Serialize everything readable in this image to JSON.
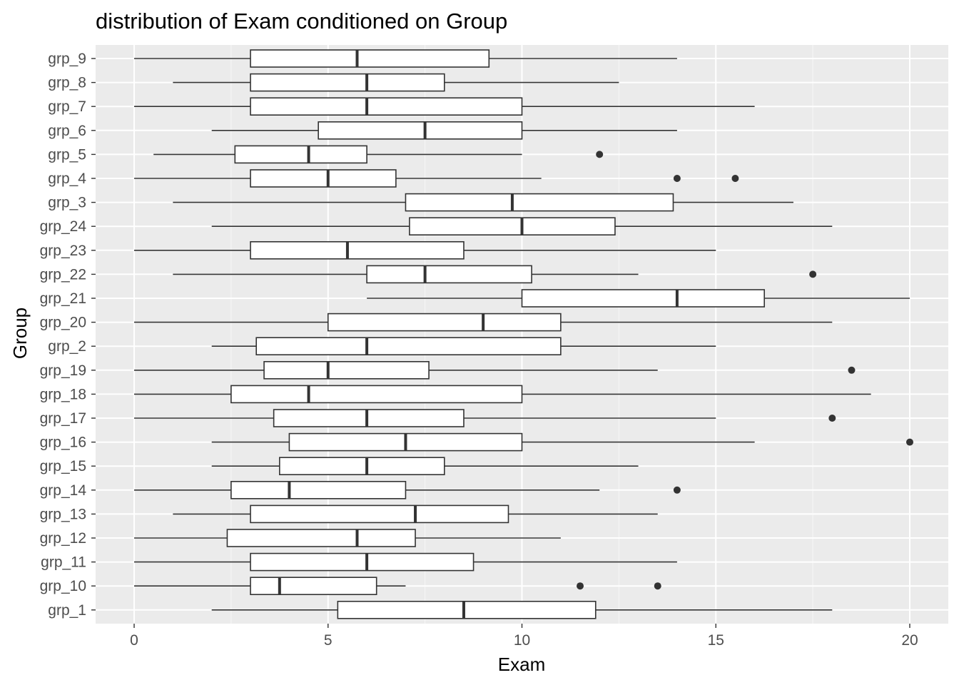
{
  "chart_data": {
    "type": "boxplot",
    "orientation": "horizontal",
    "title": "distribution of Exam conditioned on Group",
    "xlabel": "Exam",
    "ylabel": "Group",
    "xlim": [
      -1,
      21
    ],
    "x_ticks": [
      0,
      5,
      10,
      15,
      20
    ],
    "x_tick_labels": [
      "0",
      "5",
      "10",
      "15",
      "20"
    ],
    "grid": true,
    "categories": [
      "grp_1",
      "grp_10",
      "grp_11",
      "grp_12",
      "grp_13",
      "grp_14",
      "grp_15",
      "grp_16",
      "grp_17",
      "grp_18",
      "grp_19",
      "grp_2",
      "grp_20",
      "grp_21",
      "grp_22",
      "grp_23",
      "grp_24",
      "grp_3",
      "grp_4",
      "grp_5",
      "grp_6",
      "grp_7",
      "grp_8",
      "grp_9"
    ],
    "boxes": [
      {
        "group": "grp_1",
        "min": 2,
        "q1": 5.25,
        "median": 8.5,
        "q3": 11.9,
        "max": 18,
        "outliers": []
      },
      {
        "group": "grp_10",
        "min": 0,
        "q1": 3,
        "median": 3.75,
        "q3": 6.25,
        "max": 7,
        "outliers": [
          11.5,
          13.5
        ]
      },
      {
        "group": "grp_11",
        "min": 0,
        "q1": 3,
        "median": 6,
        "q3": 8.75,
        "max": 14,
        "outliers": []
      },
      {
        "group": "grp_12",
        "min": 0,
        "q1": 2.4,
        "median": 5.75,
        "q3": 7.25,
        "max": 11,
        "outliers": []
      },
      {
        "group": "grp_13",
        "min": 1,
        "q1": 3,
        "median": 7.25,
        "q3": 9.65,
        "max": 13.5,
        "outliers": []
      },
      {
        "group": "grp_14",
        "min": 0,
        "q1": 2.5,
        "median": 4,
        "q3": 7,
        "max": 12,
        "outliers": [
          14
        ]
      },
      {
        "group": "grp_15",
        "min": 2,
        "q1": 3.75,
        "median": 6,
        "q3": 8,
        "max": 13,
        "outliers": []
      },
      {
        "group": "grp_16",
        "min": 2,
        "q1": 4,
        "median": 7,
        "q3": 10,
        "max": 16,
        "outliers": [
          20
        ]
      },
      {
        "group": "grp_17",
        "min": 0,
        "q1": 3.6,
        "median": 6,
        "q3": 8.5,
        "max": 15,
        "outliers": [
          18
        ]
      },
      {
        "group": "grp_18",
        "min": 0,
        "q1": 2.5,
        "median": 4.5,
        "q3": 10,
        "max": 19,
        "outliers": []
      },
      {
        "group": "grp_19",
        "min": 0,
        "q1": 3.35,
        "median": 5,
        "q3": 7.6,
        "max": 13.5,
        "outliers": [
          18.5
        ]
      },
      {
        "group": "grp_2",
        "min": 2,
        "q1": 3.15,
        "median": 6,
        "q3": 11,
        "max": 15,
        "outliers": []
      },
      {
        "group": "grp_20",
        "min": 0,
        "q1": 5,
        "median": 9,
        "q3": 11,
        "max": 18,
        "outliers": []
      },
      {
        "group": "grp_21",
        "min": 6,
        "q1": 10,
        "median": 14,
        "q3": 16.25,
        "max": 20,
        "outliers": []
      },
      {
        "group": "grp_22",
        "min": 1,
        "q1": 6,
        "median": 7.5,
        "q3": 10.25,
        "max": 13,
        "outliers": [
          17.5
        ]
      },
      {
        "group": "grp_23",
        "min": 0,
        "q1": 3,
        "median": 5.5,
        "q3": 8.5,
        "max": 15,
        "outliers": []
      },
      {
        "group": "grp_24",
        "min": 2,
        "q1": 7.1,
        "median": 10,
        "q3": 12.4,
        "max": 18,
        "outliers": []
      },
      {
        "group": "grp_3",
        "min": 1,
        "q1": 7,
        "median": 9.75,
        "q3": 13.9,
        "max": 17,
        "outliers": []
      },
      {
        "group": "grp_4",
        "min": 0,
        "q1": 3,
        "median": 5,
        "q3": 6.75,
        "max": 10.5,
        "outliers": [
          14,
          15.5
        ]
      },
      {
        "group": "grp_5",
        "min": 0.5,
        "q1": 2.6,
        "median": 4.5,
        "q3": 6,
        "max": 10,
        "outliers": [
          12
        ]
      },
      {
        "group": "grp_6",
        "min": 2,
        "q1": 4.75,
        "median": 7.5,
        "q3": 10,
        "max": 14,
        "outliers": []
      },
      {
        "group": "grp_7",
        "min": 0,
        "q1": 3,
        "median": 6,
        "q3": 10,
        "max": 16,
        "outliers": []
      },
      {
        "group": "grp_8",
        "min": 1,
        "q1": 3,
        "median": 6,
        "q3": 8,
        "max": 12.5,
        "outliers": []
      },
      {
        "group": "grp_9",
        "min": 0,
        "q1": 3,
        "median": 5.75,
        "q3": 9.15,
        "max": 14,
        "outliers": []
      }
    ],
    "colors": {
      "panel_background": "#ebebeb",
      "grid_major": "#ffffff",
      "box_fill": "#ffffff",
      "box_stroke": "#333333",
      "outlier": "#333333",
      "tick_label": "#4d4d4d"
    }
  }
}
